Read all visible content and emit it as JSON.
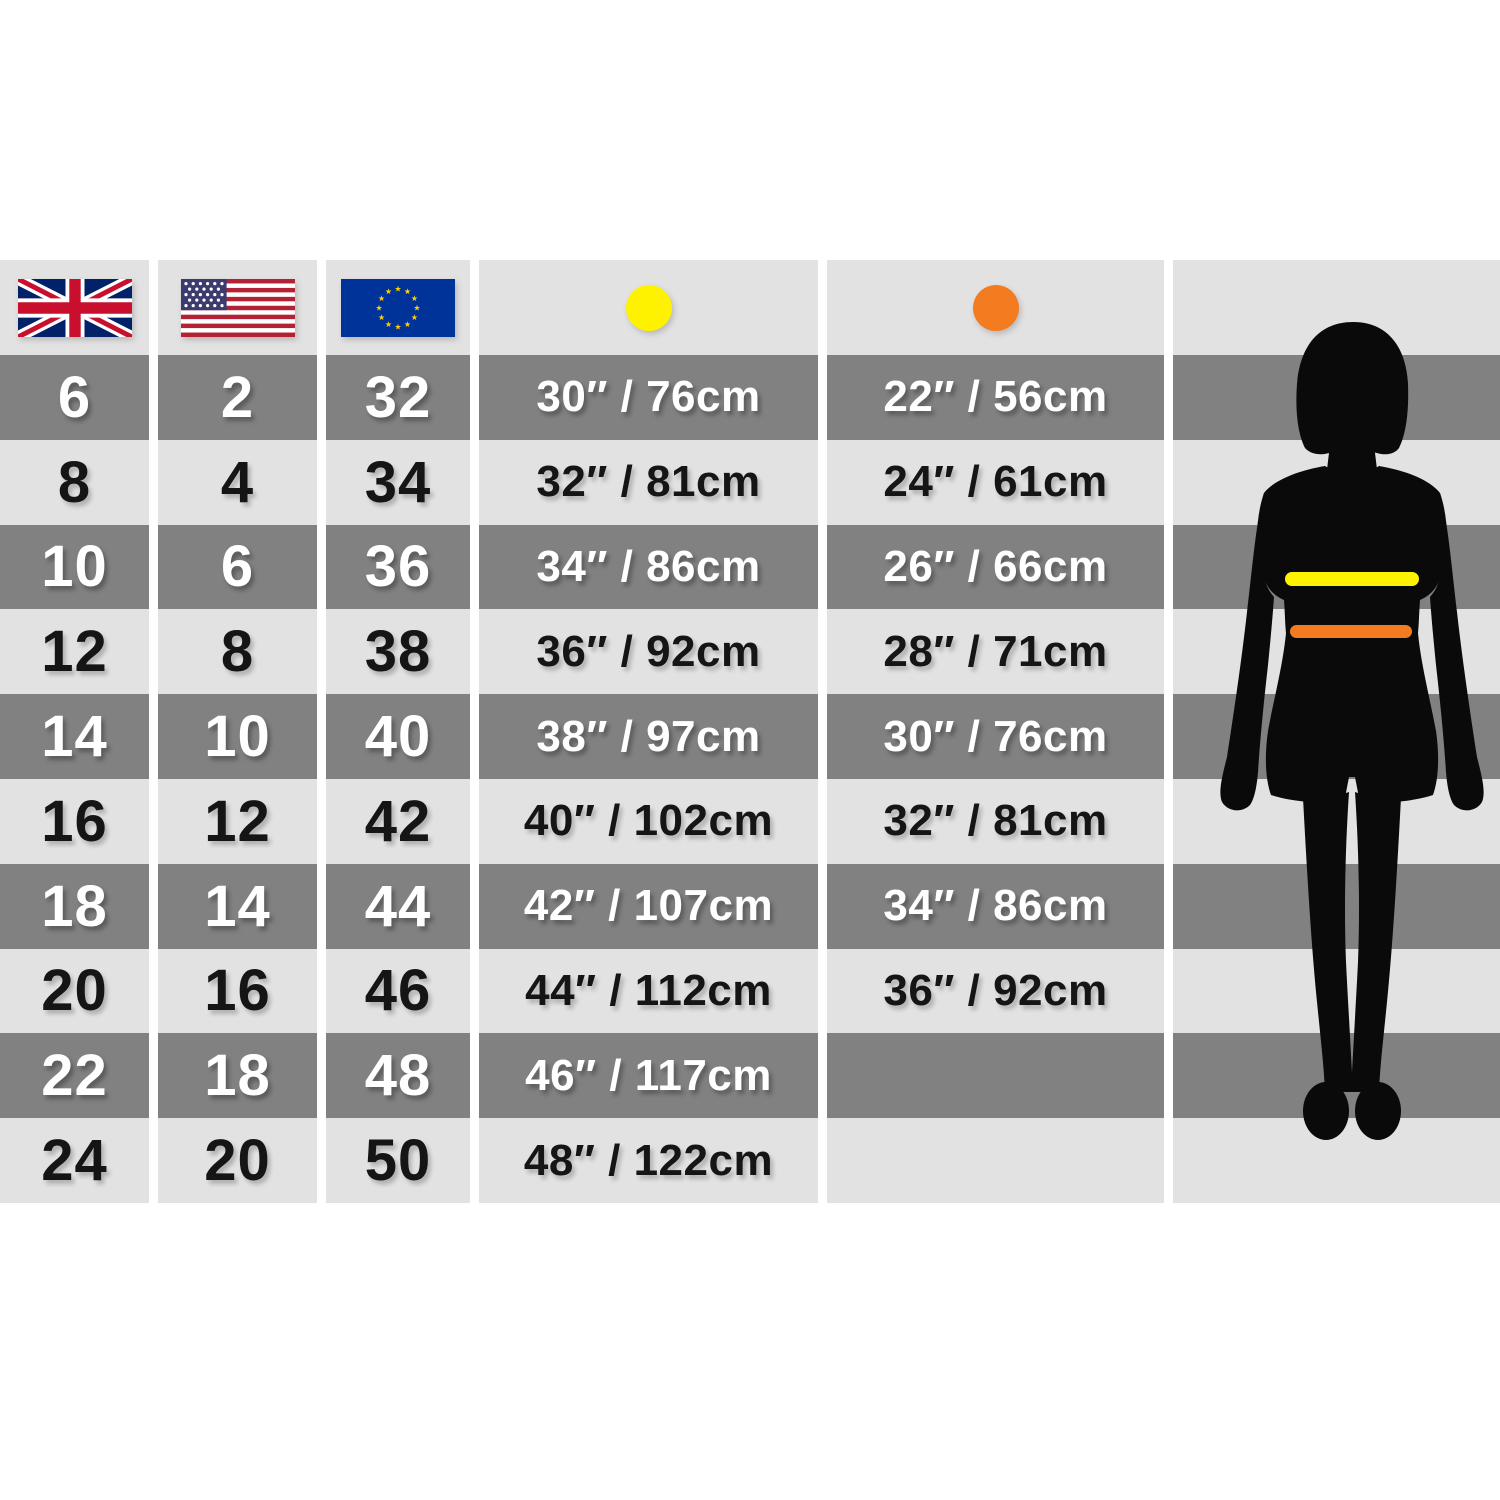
{
  "chart_data": {
    "type": "table",
    "title": "Women's clothing size conversion chart with bust and waist measurements",
    "column_headers": [
      "UK flag",
      "US flag",
      "EU flag",
      "yellow dot (bust)",
      "orange dot (waist)",
      "figure silhouette"
    ],
    "rows": [
      {
        "uk": "6",
        "us": "2",
        "eu": "32",
        "bust": "30″ / 76cm",
        "waist": "22″ / 56cm"
      },
      {
        "uk": "8",
        "us": "4",
        "eu": "34",
        "bust": "32″ / 81cm",
        "waist": "24″ / 61cm"
      },
      {
        "uk": "10",
        "us": "6",
        "eu": "36",
        "bust": "34″ / 86cm",
        "waist": "26″ / 66cm"
      },
      {
        "uk": "12",
        "us": "8",
        "eu": "38",
        "bust": "36″ / 92cm",
        "waist": "28″ / 71cm"
      },
      {
        "uk": "14",
        "us": "10",
        "eu": "40",
        "bust": "38″ / 97cm",
        "waist": "30″ / 76cm"
      },
      {
        "uk": "16",
        "us": "12",
        "eu": "42",
        "bust": "40″ / 102cm",
        "waist": "32″ / 81cm"
      },
      {
        "uk": "18",
        "us": "14",
        "eu": "44",
        "bust": "42″ / 107cm",
        "waist": "34″ / 86cm"
      },
      {
        "uk": "20",
        "us": "16",
        "eu": "46",
        "bust": "44″ / 112cm",
        "waist": "36″ / 92cm"
      },
      {
        "uk": "22",
        "us": "18",
        "eu": "48",
        "bust": "46″ / 117cm",
        "waist": ""
      },
      {
        "uk": "24",
        "us": "20",
        "eu": "50",
        "bust": "48″ / 122cm",
        "waist": ""
      }
    ],
    "layout_hints": {
      "row_striping": [
        "dark-gray",
        "light-gray"
      ],
      "header_background": "light-gray",
      "bust_rows_span": "sizes UK 6-24",
      "waist_rows_span": "sizes UK 6-20 (empty for UK 22 and 24)"
    }
  },
  "table": {
    "header_icons": [
      "uk-flag",
      "us-flag",
      "eu-flag",
      "bust-yellow-dot",
      "waist-orange-dot"
    ],
    "column_keys": [
      "uk",
      "us",
      "eu",
      "bust",
      "waist",
      "figure"
    ]
  },
  "legend": {
    "bust_color": "#fff200",
    "waist_color": "#f47c20",
    "dark_row_color": "#818181",
    "light_row_color": "#e2e2e2",
    "silhouette_color": "#0a0a0a"
  }
}
